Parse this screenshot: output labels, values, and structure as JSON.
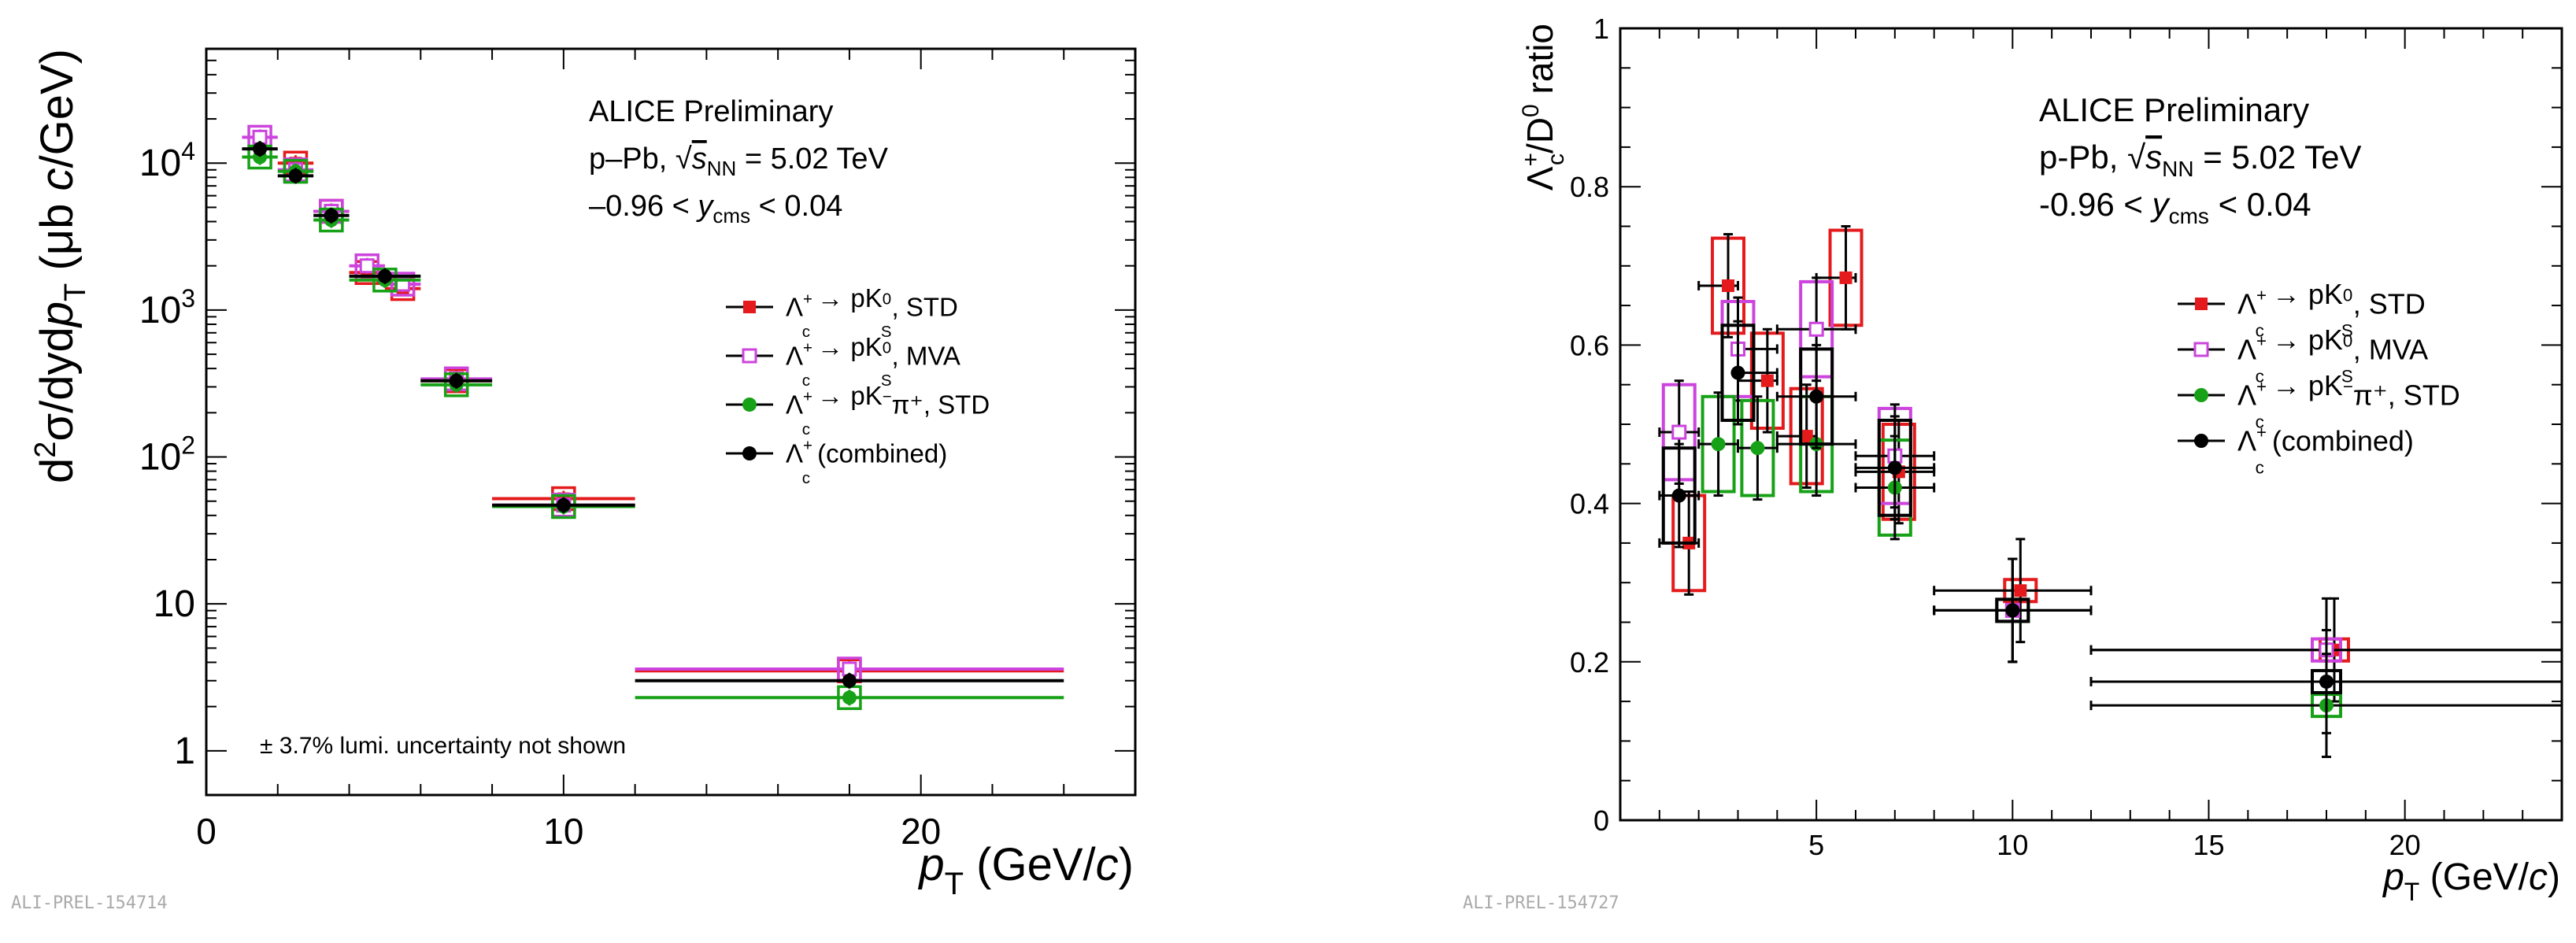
{
  "chart_data": [
    {
      "type": "scatter",
      "log_y": true,
      "xlabel_main": "p",
      "xlabel_sub": "T",
      "xlabel_unit": " (GeV/",
      "xlabel_unit_c": "c",
      "xlabel_close": ")",
      "ylabel_main": "d",
      "ylabel_sup": "2",
      "ylabel_mid": "σ/dyd",
      "ylabel_p": "p",
      "ylabel_sub": "T",
      "ylabel_unit": "  (μb ",
      "ylabel_unit_c": "c",
      "ylabel_unit_end": "/GeV)",
      "xlim": [
        0,
        26
      ],
      "ylim": [
        0.5,
        60000
      ],
      "x_ticks": [
        "0",
        "10",
        "20"
      ],
      "y_ticks": [
        {
          "base": "1",
          "exp": ""
        },
        {
          "base": "10",
          "exp": ""
        },
        {
          "base": "10",
          "exp": "2"
        },
        {
          "base": "10",
          "exp": "3"
        },
        {
          "base": "10",
          "exp": "4"
        }
      ],
      "header": {
        "line1": "ALICE Preliminary",
        "line2_a": "p–Pb, ",
        "line2_s": "s",
        "line2_sub": "NN",
        "line2_b": " = 5.02 TeV",
        "line3_a": "–0.96 < ",
        "line3_y": "y",
        "line3_sub": "cms",
        "line3_b": " < 0.04"
      },
      "note": "± 3.7% lumi. uncertainty not shown",
      "footer_id": "ALI-PREL-154714",
      "legend": [
        {
          "pre": "Λ",
          "sup": "+",
          "sub": "c",
          "arrow": " → pK",
          "sup2": "0",
          "sub2": "S",
          "post": ", STD"
        },
        {
          "pre": "Λ",
          "sup": "+",
          "sub": "c",
          "arrow": " → pK",
          "sup2": "0",
          "sub2": "S",
          "post": ", MVA"
        },
        {
          "pre": "Λ",
          "sup": "+",
          "sub": "c",
          "arrow": " → pK",
          "sup2": "−",
          "sub2": "",
          "post": "π⁺, STD"
        },
        {
          "pre": "Λ",
          "sup": "+",
          "sub": "c",
          "arrow": "",
          "sup2": "",
          "sub2": "",
          "post": " (combined)"
        }
      ],
      "series": [
        {
          "name": "Λc+ → pK0S, STD",
          "color": "#e41a1c",
          "marker": "filled-square",
          "points": [
            [
              2.5,
              10000
            ],
            [
              3.5,
              4700
            ],
            [
              4.5,
              1800
            ],
            [
              5.5,
              1400
            ],
            [
              7,
              330
            ],
            [
              10,
              52
            ],
            [
              18,
              3.5
            ]
          ]
        },
        {
          "name": "Λc+ → pK0S, MVA",
          "color": "#cc44dd",
          "marker": "open-square",
          "points": [
            [
              1.5,
              15000
            ],
            [
              2.5,
              9000
            ],
            [
              3.5,
              4700
            ],
            [
              4.5,
              2000
            ],
            [
              5.5,
              1500
            ],
            [
              7,
              340
            ],
            [
              10,
              47
            ],
            [
              18,
              3.6
            ]
          ]
        },
        {
          "name": "Λc+ → pK−π+, STD",
          "color": "#17a117",
          "marker": "filled-circle",
          "points": [
            [
              1.5,
              11000
            ],
            [
              2.5,
              8800
            ],
            [
              3.5,
              4100
            ],
            [
              5,
              1600
            ],
            [
              7,
              310
            ],
            [
              10,
              46
            ],
            [
              18,
              2.3
            ]
          ]
        },
        {
          "name": "Λc+ (combined)",
          "color": "#000000",
          "marker": "filled-circle",
          "points": [
            [
              1.5,
              12500
            ],
            [
              2.5,
              8200
            ],
            [
              3.5,
              4400
            ],
            [
              5,
              1700
            ],
            [
              7,
              330
            ],
            [
              10,
              47
            ],
            [
              18,
              3.0
            ]
          ]
        }
      ]
    },
    {
      "type": "scatter",
      "xlabel_main": "p",
      "xlabel_sub": "T",
      "xlabel_unit": " (GeV/",
      "xlabel_unit_c": "c",
      "xlabel_close": ")",
      "ylabel_main": "Λ",
      "ylabel_sup": "+",
      "ylabel_sub": "c",
      "ylabel_mid": "/D",
      "ylabel_sup2": "0",
      "ylabel_end": " ratio",
      "xlim": [
        0,
        24
      ],
      "ylim": [
        0,
        1
      ],
      "x_ticks": [
        "5",
        "10",
        "15",
        "20"
      ],
      "y_ticks": [
        "0",
        "0.2",
        "0.4",
        "0.6",
        "0.8",
        "1"
      ],
      "header": {
        "line1": "ALICE Preliminary",
        "line2_a": "p-Pb, ",
        "line2_s": "s",
        "line2_sub": "NN",
        "line2_b": " = 5.02 TeV",
        "line3_a": "-0.96 < ",
        "line3_y": "y",
        "line3_sub": "cms",
        "line3_b": " < 0.04"
      },
      "footer_id": "ALI-PREL-154727",
      "legend": [
        {
          "pre": "Λ",
          "sup": "+",
          "sub": "c",
          "arrow": " → pK",
          "sup2": "0",
          "sub2": "S",
          "post": ", STD"
        },
        {
          "pre": "Λ",
          "sup": "+",
          "sub": "c",
          "arrow": " → pK",
          "sup2": "0",
          "sub2": "S",
          "post": ", MVA"
        },
        {
          "pre": "Λ",
          "sup": "+",
          "sub": "c",
          "arrow": " → pK",
          "sup2": "−",
          "sub2": "",
          "post": "π⁺, STD"
        },
        {
          "pre": "Λ",
          "sup": "+",
          "sub": "c",
          "arrow": "",
          "sup2": "",
          "sub2": "",
          "post": " (combined)"
        }
      ],
      "series": [
        {
          "name": "Λc+ → pK0S, STD",
          "color": "#e41a1c",
          "marker": "filled-square",
          "points": [
            [
              1.75,
              0.35
            ],
            [
              2.75,
              0.675
            ],
            [
              3.75,
              0.555
            ],
            [
              4.75,
              0.485
            ],
            [
              5.75,
              0.685
            ],
            [
              7.1,
              0.44
            ],
            [
              10.2,
              0.29
            ],
            [
              18.2,
              0.215
            ]
          ]
        },
        {
          "name": "Λc+ → pK0S, MVA",
          "color": "#cc44dd",
          "marker": "open-square",
          "points": [
            [
              1.5,
              0.49
            ],
            [
              3,
              0.595
            ],
            [
              5,
              0.62
            ],
            [
              7,
              0.46
            ],
            [
              10,
              0.265
            ],
            [
              18,
              0.215
            ]
          ]
        },
        {
          "name": "Λc+ → pK−π+, STD",
          "color": "#17a117",
          "marker": "filled-circle",
          "points": [
            [
              2.5,
              0.475
            ],
            [
              3.5,
              0.47
            ],
            [
              5,
              0.475
            ],
            [
              7,
              0.42
            ],
            [
              10,
              0.265
            ],
            [
              18,
              0.145
            ]
          ]
        },
        {
          "name": "Λc+ (combined)",
          "color": "#000000",
          "marker": "filled-circle",
          "points": [
            [
              1.5,
              0.41
            ],
            [
              3,
              0.565
            ],
            [
              5,
              0.535
            ],
            [
              7,
              0.445
            ],
            [
              10,
              0.265
            ],
            [
              18,
              0.175
            ]
          ]
        }
      ]
    }
  ]
}
